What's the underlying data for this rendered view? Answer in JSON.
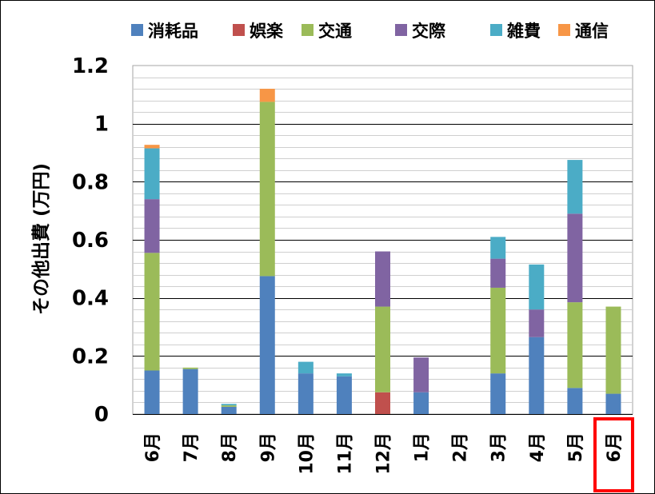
{
  "chart_data": {
    "type": "bar",
    "stacked": true,
    "ylabel": "その他出費 (万円)",
    "xlabel": "",
    "ylim": [
      0,
      1.2
    ],
    "yticks": [
      "0",
      "0.2",
      "0.4",
      "0.6",
      "0.8",
      "1",
      "1.2"
    ],
    "grid": true,
    "legend_position": "top",
    "categories": [
      "6月",
      "7月",
      "8月",
      "9月",
      "10月",
      "11月",
      "12月",
      "1月",
      "2月",
      "3月",
      "4月",
      "5月",
      "6月"
    ],
    "highlighted_category_index": 12,
    "highlight_color": "#ff0000",
    "series": [
      {
        "name": "消耗品",
        "color": "#4f81bd",
        "values": [
          0.15,
          0.155,
          0.025,
          0.475,
          0.14,
          0.13,
          0.0,
          0.075,
          0,
          0.14,
          0.265,
          0.09,
          0.07
        ]
      },
      {
        "name": "娯楽",
        "color": "#c0504d",
        "values": [
          0,
          0,
          0,
          0,
          0,
          0,
          0.075,
          0,
          0,
          0,
          0,
          0,
          0
        ]
      },
      {
        "name": "交通",
        "color": "#9bbb59",
        "values": [
          0.405,
          0.005,
          0.005,
          0.6,
          0,
          0,
          0.295,
          0,
          0,
          0.295,
          0,
          0.295,
          0.3
        ]
      },
      {
        "name": "交際",
        "color": "#8064a2",
        "values": [
          0.185,
          0,
          0,
          0,
          0,
          0,
          0.19,
          0.12,
          0,
          0.1,
          0.095,
          0.305,
          0
        ]
      },
      {
        "name": "雑費",
        "color": "#4bacc6",
        "values": [
          0.175,
          0,
          0.005,
          0,
          0.04,
          0.01,
          0,
          0,
          0,
          0.075,
          0.155,
          0.185,
          0
        ]
      },
      {
        "name": "通信",
        "color": "#f79646",
        "values": [
          0.012,
          0,
          0,
          0.045,
          0,
          0,
          0,
          0,
          0,
          0,
          0,
          0,
          0
        ]
      }
    ]
  }
}
